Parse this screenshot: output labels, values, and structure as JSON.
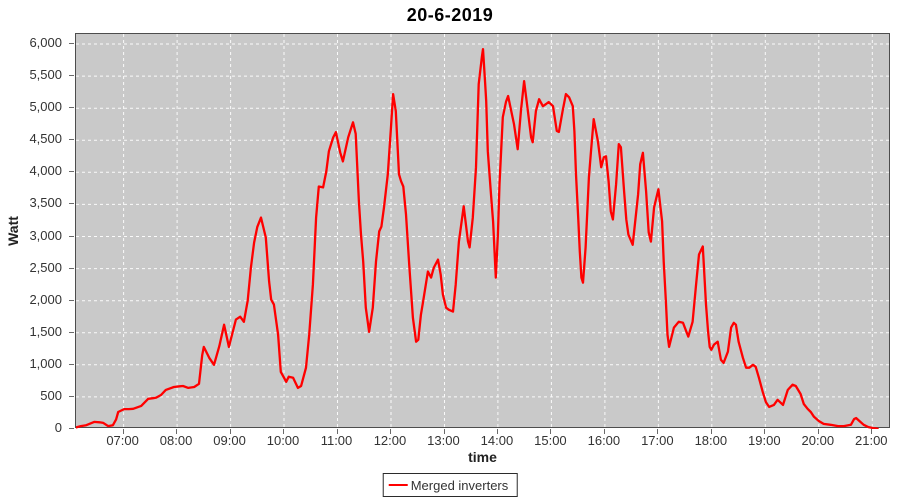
{
  "chart_data": {
    "type": "line",
    "title": "20-6-2019",
    "xlabel": "time",
    "ylabel": "Watt",
    "plot_bg_color": "#c9c9c9",
    "grid": {
      "color": "#ffffff",
      "dashed": true
    },
    "axis_color": "#4d4d4d",
    "x_axis": {
      "min_hour": 6.11,
      "max_hour": 21.35,
      "ticks": [
        7,
        8,
        9,
        10,
        11,
        12,
        13,
        14,
        15,
        16,
        17,
        18,
        19,
        20,
        21
      ],
      "tick_labels": [
        "07:00",
        "08:00",
        "09:00",
        "10:00",
        "11:00",
        "12:00",
        "13:00",
        "14:00",
        "15:00",
        "16:00",
        "17:00",
        "18:00",
        "19:00",
        "20:00",
        "21:00"
      ]
    },
    "y_axis": {
      "min": 0,
      "max": 6156,
      "grid_ticks": [
        500,
        1000,
        1500,
        2000,
        2500,
        3000,
        3500,
        4000,
        4500,
        5000,
        5500,
        6000
      ],
      "ticks": [
        0,
        500,
        1000,
        1500,
        2000,
        2500,
        3000,
        3500,
        4000,
        4500,
        5000,
        5500,
        6000
      ],
      "tick_labels": [
        "0",
        "500",
        "1,000",
        "1,500",
        "2,000",
        "2,500",
        "3,000",
        "3,500",
        "4,000",
        "4,500",
        "5,000",
        "5,500",
        "6,000"
      ]
    },
    "legend": [
      {
        "label": "Merged inverters",
        "color": "#ff0000"
      }
    ],
    "series": [
      {
        "name": "Merged inverters",
        "color": "#ff0000",
        "points": [
          [
            6.08,
            15
          ],
          [
            6.13,
            30
          ],
          [
            6.2,
            45
          ],
          [
            6.3,
            60
          ],
          [
            6.45,
            110
          ],
          [
            6.55,
            105
          ],
          [
            6.62,
            95
          ],
          [
            6.71,
            45
          ],
          [
            6.8,
            60
          ],
          [
            6.86,
            150
          ],
          [
            6.9,
            265
          ],
          [
            7.01,
            310
          ],
          [
            7.1,
            310
          ],
          [
            7.18,
            315
          ],
          [
            7.33,
            360
          ],
          [
            7.46,
            470
          ],
          [
            7.55,
            480
          ],
          [
            7.61,
            490
          ],
          [
            7.7,
            530
          ],
          [
            7.79,
            610
          ],
          [
            7.94,
            655
          ],
          [
            8.05,
            665
          ],
          [
            8.11,
            670
          ],
          [
            8.21,
            640
          ],
          [
            8.32,
            655
          ],
          [
            8.41,
            705
          ],
          [
            8.47,
            1150
          ],
          [
            8.5,
            1280
          ],
          [
            8.6,
            1110
          ],
          [
            8.69,
            1000
          ],
          [
            8.79,
            1290
          ],
          [
            8.88,
            1625
          ],
          [
            8.97,
            1280
          ],
          [
            9.1,
            1705
          ],
          [
            9.18,
            1750
          ],
          [
            9.25,
            1670
          ],
          [
            9.32,
            2000
          ],
          [
            9.38,
            2515
          ],
          [
            9.44,
            2905
          ],
          [
            9.5,
            3150
          ],
          [
            9.57,
            3295
          ],
          [
            9.66,
            2985
          ],
          [
            9.72,
            2300
          ],
          [
            9.76,
            2015
          ],
          [
            9.81,
            1940
          ],
          [
            9.89,
            1470
          ],
          [
            9.94,
            890
          ],
          [
            10.0,
            800
          ],
          [
            10.04,
            735
          ],
          [
            10.09,
            815
          ],
          [
            10.17,
            800
          ],
          [
            10.26,
            640
          ],
          [
            10.32,
            670
          ],
          [
            10.41,
            955
          ],
          [
            10.47,
            1470
          ],
          [
            10.54,
            2250
          ],
          [
            10.6,
            3295
          ],
          [
            10.65,
            3780
          ],
          [
            10.73,
            3765
          ],
          [
            10.79,
            4015
          ],
          [
            10.84,
            4330
          ],
          [
            10.92,
            4545
          ],
          [
            10.97,
            4625
          ],
          [
            11.05,
            4310
          ],
          [
            11.1,
            4170
          ],
          [
            11.2,
            4545
          ],
          [
            11.29,
            4780
          ],
          [
            11.34,
            4600
          ],
          [
            11.4,
            3545
          ],
          [
            11.44,
            3030
          ],
          [
            11.48,
            2610
          ],
          [
            11.53,
            1890
          ],
          [
            11.59,
            1515
          ],
          [
            11.66,
            1890
          ],
          [
            11.72,
            2610
          ],
          [
            11.78,
            3080
          ],
          [
            11.82,
            3155
          ],
          [
            11.87,
            3455
          ],
          [
            11.94,
            3970
          ],
          [
            12.0,
            4705
          ],
          [
            12.04,
            5220
          ],
          [
            12.09,
            4955
          ],
          [
            12.15,
            3970
          ],
          [
            12.19,
            3860
          ],
          [
            12.23,
            3780
          ],
          [
            12.28,
            3345
          ],
          [
            12.34,
            2565
          ],
          [
            12.41,
            1735
          ],
          [
            12.47,
            1360
          ],
          [
            12.51,
            1390
          ],
          [
            12.56,
            1780
          ],
          [
            12.6,
            1985
          ],
          [
            12.69,
            2455
          ],
          [
            12.75,
            2360
          ],
          [
            12.8,
            2515
          ],
          [
            12.88,
            2640
          ],
          [
            12.93,
            2405
          ],
          [
            12.97,
            2095
          ],
          [
            13.03,
            1890
          ],
          [
            13.08,
            1860
          ],
          [
            13.16,
            1830
          ],
          [
            13.21,
            2250
          ],
          [
            13.27,
            2920
          ],
          [
            13.36,
            3470
          ],
          [
            13.44,
            2920
          ],
          [
            13.47,
            2830
          ],
          [
            13.53,
            3295
          ],
          [
            13.59,
            4080
          ],
          [
            13.64,
            5375
          ],
          [
            13.7,
            5800
          ],
          [
            13.72,
            5920
          ],
          [
            13.76,
            5400
          ],
          [
            13.78,
            5110
          ],
          [
            13.81,
            4330
          ],
          [
            13.87,
            3655
          ],
          [
            13.91,
            3230
          ],
          [
            13.96,
            2360
          ],
          [
            14.0,
            3030
          ],
          [
            14.03,
            3815
          ],
          [
            14.09,
            4860
          ],
          [
            14.15,
            5100
          ],
          [
            14.19,
            5190
          ],
          [
            14.3,
            4750
          ],
          [
            14.37,
            4360
          ],
          [
            14.43,
            4955
          ],
          [
            14.49,
            5420
          ],
          [
            14.56,
            4955
          ],
          [
            14.62,
            4545
          ],
          [
            14.65,
            4470
          ],
          [
            14.71,
            4955
          ],
          [
            14.77,
            5140
          ],
          [
            14.84,
            5030
          ],
          [
            14.9,
            5065
          ],
          [
            14.95,
            5095
          ],
          [
            15.03,
            5030
          ],
          [
            15.1,
            4645
          ],
          [
            15.14,
            4630
          ],
          [
            15.21,
            4955
          ],
          [
            15.27,
            5220
          ],
          [
            15.33,
            5170
          ],
          [
            15.4,
            5030
          ],
          [
            15.43,
            4640
          ],
          [
            15.46,
            3970
          ],
          [
            15.5,
            3295
          ],
          [
            15.53,
            2765
          ],
          [
            15.56,
            2360
          ],
          [
            15.59,
            2280
          ],
          [
            15.64,
            2830
          ],
          [
            15.7,
            3920
          ],
          [
            15.74,
            4330
          ],
          [
            15.79,
            4830
          ],
          [
            15.87,
            4485
          ],
          [
            15.93,
            4080
          ],
          [
            15.98,
            4235
          ],
          [
            16.02,
            4250
          ],
          [
            16.07,
            3860
          ],
          [
            16.11,
            3390
          ],
          [
            16.15,
            3265
          ],
          [
            16.21,
            3815
          ],
          [
            16.26,
            4440
          ],
          [
            16.3,
            4390
          ],
          [
            16.36,
            3705
          ],
          [
            16.4,
            3265
          ],
          [
            16.44,
            3030
          ],
          [
            16.52,
            2870
          ],
          [
            16.62,
            3655
          ],
          [
            16.66,
            4125
          ],
          [
            16.71,
            4305
          ],
          [
            16.77,
            3705
          ],
          [
            16.82,
            3065
          ],
          [
            16.86,
            2920
          ],
          [
            16.92,
            3455
          ],
          [
            17.0,
            3735
          ],
          [
            17.07,
            3235
          ],
          [
            17.1,
            2610
          ],
          [
            17.14,
            1985
          ],
          [
            17.17,
            1470
          ],
          [
            17.2,
            1280
          ],
          [
            17.29,
            1580
          ],
          [
            17.38,
            1670
          ],
          [
            17.46,
            1655
          ],
          [
            17.56,
            1440
          ],
          [
            17.64,
            1670
          ],
          [
            17.7,
            2205
          ],
          [
            17.76,
            2720
          ],
          [
            17.83,
            2845
          ],
          [
            17.89,
            1940
          ],
          [
            17.93,
            1515
          ],
          [
            17.96,
            1280
          ],
          [
            17.99,
            1235
          ],
          [
            18.04,
            1315
          ],
          [
            18.11,
            1360
          ],
          [
            18.17,
            1080
          ],
          [
            18.22,
            1030
          ],
          [
            18.3,
            1205
          ],
          [
            18.36,
            1580
          ],
          [
            18.41,
            1655
          ],
          [
            18.45,
            1625
          ],
          [
            18.5,
            1360
          ],
          [
            18.58,
            1110
          ],
          [
            18.64,
            955
          ],
          [
            18.7,
            955
          ],
          [
            18.77,
            1000
          ],
          [
            18.82,
            970
          ],
          [
            18.88,
            800
          ],
          [
            18.95,
            580
          ],
          [
            19.01,
            420
          ],
          [
            19.07,
            345
          ],
          [
            19.16,
            375
          ],
          [
            19.23,
            455
          ],
          [
            19.33,
            375
          ],
          [
            19.42,
            610
          ],
          [
            19.51,
            690
          ],
          [
            19.57,
            670
          ],
          [
            19.66,
            545
          ],
          [
            19.72,
            390
          ],
          [
            19.79,
            315
          ],
          [
            19.85,
            265
          ],
          [
            19.91,
            190
          ],
          [
            20.0,
            125
          ],
          [
            20.09,
            80
          ],
          [
            20.22,
            65
          ],
          [
            20.36,
            45
          ],
          [
            20.47,
            45
          ],
          [
            20.6,
            65
          ],
          [
            20.66,
            155
          ],
          [
            20.7,
            170
          ],
          [
            20.76,
            125
          ],
          [
            20.84,
            65
          ],
          [
            20.93,
            30
          ],
          [
            21.01,
            15
          ],
          [
            21.1,
            5
          ]
        ]
      }
    ]
  }
}
